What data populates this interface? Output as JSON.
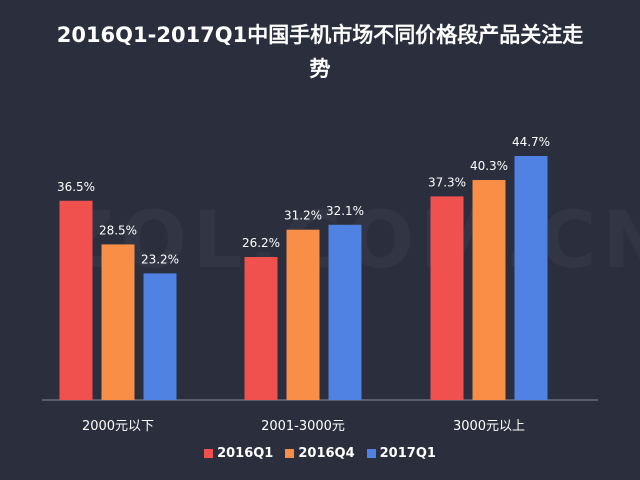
{
  "chart_data": {
    "type": "bar",
    "title": "2016Q1-2017Q1中国手机市场不同价格段产品关注走势",
    "categories": [
      "2000元以下",
      "2001-3000元",
      "3000元以上"
    ],
    "series": [
      {
        "name": "2016Q1",
        "color": "#f0514f",
        "values": [
          36.5,
          26.2,
          37.3
        ]
      },
      {
        "name": "2016Q4",
        "color": "#f98f47",
        "values": [
          28.5,
          31.2,
          40.3
        ]
      },
      {
        "name": "2017Q1",
        "color": "#4f82e3",
        "values": [
          23.2,
          32.1,
          44.7
        ]
      }
    ],
    "value_suffix": "%",
    "ylim": [
      0,
      50
    ],
    "xlabel": "",
    "ylabel": "",
    "legend_position": "bottom",
    "grid": false
  },
  "watermark": "ZOL.COM.CN"
}
